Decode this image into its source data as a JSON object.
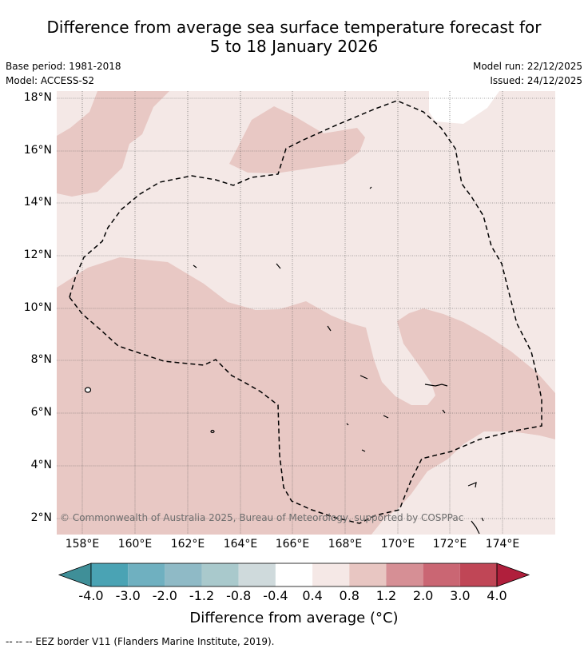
{
  "title_line1": "Difference from average sea surface temperature forecast for",
  "title_line2": "5 to 18 January 2026",
  "base_period": "Base period: 1981-2018",
  "model": "Model: ACCESS-S2",
  "model_run": "Model run: 22/12/2025",
  "issued": "Issued: 24/12/2025",
  "copyright": "© Commonwealth of Australia 2025, Bureau of Meteorology, supported by COSPPac",
  "y_ticks": [
    "18°N",
    "16°N",
    "14°N",
    "12°N",
    "10°N",
    "8°N",
    "6°N",
    "4°N",
    "2°N"
  ],
  "x_ticks": [
    "158°E",
    "160°E",
    "162°E",
    "164°E",
    "166°E",
    "168°E",
    "170°E",
    "172°E",
    "174°E"
  ],
  "colorbar": {
    "ticks": [
      "-4.0",
      "-3.0",
      "-2.0",
      "-1.2",
      "-0.8",
      "-0.4",
      "0.4",
      "0.8",
      "1.2",
      "2.0",
      "3.0",
      "4.0"
    ],
    "colors": [
      "#3f8f98",
      "#4aa3b4",
      "#6fb0c0",
      "#8fbac6",
      "#a9c9cc",
      "#cfdadc",
      "#ffffff",
      "#f5e8e6",
      "#e8c6c2",
      "#d68f95",
      "#ca6673",
      "#c04656",
      "#b01f3c"
    ],
    "label": "Difference from average (°C)"
  },
  "legend_footer": "--  --  -- EEZ border V11 (Flanders Marine Institute, 2019).",
  "map_colors": {
    "light": "#f4e8e6",
    "mid": "#e8c8c4",
    "grid": "#555555",
    "land": "#000000"
  }
}
